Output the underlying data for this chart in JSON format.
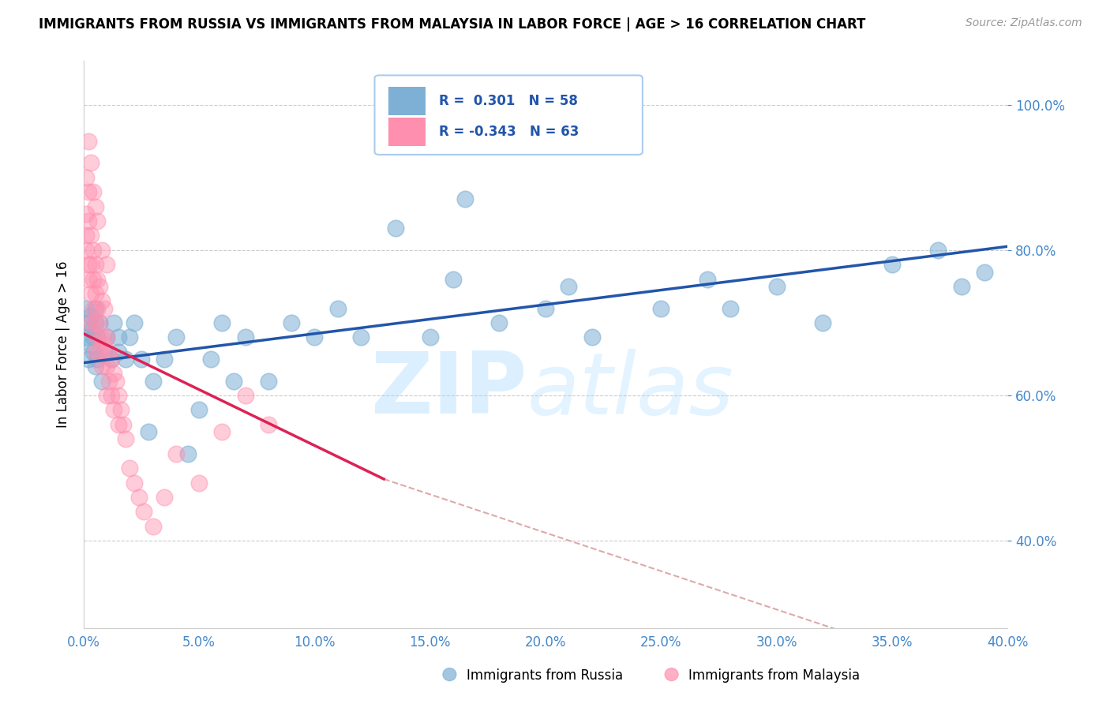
{
  "title": "IMMIGRANTS FROM RUSSIA VS IMMIGRANTS FROM MALAYSIA IN LABOR FORCE | AGE > 16 CORRELATION CHART",
  "source": "Source: ZipAtlas.com",
  "ylabel": "In Labor Force | Age > 16",
  "watermark_left": "ZIP",
  "watermark_right": "atlas",
  "legend_russia": "Immigrants from Russia",
  "legend_malaysia": "Immigrants from Malaysia",
  "R_russia": 0.301,
  "N_russia": 58,
  "R_malaysia": -0.343,
  "N_malaysia": 63,
  "color_russia": "#7EB0D5",
  "color_malaysia": "#FF8FAF",
  "line_color_russia": "#2255AA",
  "line_color_malaysia": "#DD2255",
  "dash_color": "#DDAAAA",
  "xlim": [
    0.0,
    0.4
  ],
  "ylim": [
    0.28,
    1.06
  ],
  "yticks": [
    0.4,
    0.6,
    0.8,
    1.0
  ],
  "xticks": [
    0.0,
    0.05,
    0.1,
    0.15,
    0.2,
    0.25,
    0.3,
    0.35,
    0.4
  ],
  "russia_x": [
    0.001,
    0.001,
    0.002,
    0.002,
    0.003,
    0.003,
    0.003,
    0.004,
    0.004,
    0.005,
    0.005,
    0.005,
    0.006,
    0.006,
    0.007,
    0.008,
    0.009,
    0.01,
    0.012,
    0.013,
    0.015,
    0.015,
    0.018,
    0.02,
    0.022,
    0.025,
    0.028,
    0.03,
    0.035,
    0.04,
    0.045,
    0.05,
    0.055,
    0.06,
    0.065,
    0.07,
    0.08,
    0.09,
    0.1,
    0.11,
    0.12,
    0.15,
    0.16,
    0.18,
    0.2,
    0.22,
    0.25,
    0.28,
    0.3,
    0.32,
    0.35,
    0.37,
    0.38,
    0.39,
    0.135,
    0.165,
    0.21,
    0.27
  ],
  "russia_y": [
    0.68,
    0.72,
    0.7,
    0.65,
    0.67,
    0.69,
    0.71,
    0.66,
    0.68,
    0.64,
    0.7,
    0.72,
    0.65,
    0.68,
    0.7,
    0.62,
    0.66,
    0.68,
    0.65,
    0.7,
    0.66,
    0.68,
    0.65,
    0.68,
    0.7,
    0.65,
    0.55,
    0.62,
    0.65,
    0.68,
    0.52,
    0.58,
    0.65,
    0.7,
    0.62,
    0.68,
    0.62,
    0.7,
    0.68,
    0.72,
    0.68,
    0.68,
    0.76,
    0.7,
    0.72,
    0.68,
    0.72,
    0.72,
    0.75,
    0.7,
    0.78,
    0.8,
    0.75,
    0.77,
    0.83,
    0.87,
    0.75,
    0.76
  ],
  "malaysia_x": [
    0.001,
    0.001,
    0.001,
    0.001,
    0.002,
    0.002,
    0.002,
    0.002,
    0.003,
    0.003,
    0.003,
    0.003,
    0.004,
    0.004,
    0.004,
    0.005,
    0.005,
    0.005,
    0.005,
    0.006,
    0.006,
    0.006,
    0.007,
    0.007,
    0.007,
    0.008,
    0.008,
    0.008,
    0.009,
    0.009,
    0.01,
    0.01,
    0.01,
    0.011,
    0.011,
    0.012,
    0.012,
    0.013,
    0.013,
    0.014,
    0.015,
    0.015,
    0.016,
    0.017,
    0.018,
    0.02,
    0.022,
    0.024,
    0.026,
    0.03,
    0.035,
    0.04,
    0.05,
    0.06,
    0.07,
    0.08,
    0.002,
    0.003,
    0.004,
    0.005,
    0.006,
    0.008,
    0.01
  ],
  "malaysia_y": [
    0.9,
    0.85,
    0.82,
    0.8,
    0.88,
    0.84,
    0.78,
    0.76,
    0.82,
    0.78,
    0.74,
    0.7,
    0.8,
    0.76,
    0.72,
    0.78,
    0.74,
    0.7,
    0.66,
    0.76,
    0.72,
    0.68,
    0.75,
    0.7,
    0.66,
    0.73,
    0.68,
    0.64,
    0.72,
    0.67,
    0.68,
    0.64,
    0.6,
    0.66,
    0.62,
    0.65,
    0.6,
    0.63,
    0.58,
    0.62,
    0.6,
    0.56,
    0.58,
    0.56,
    0.54,
    0.5,
    0.48,
    0.46,
    0.44,
    0.42,
    0.46,
    0.52,
    0.48,
    0.55,
    0.6,
    0.56,
    0.95,
    0.92,
    0.88,
    0.86,
    0.84,
    0.8,
    0.78
  ],
  "malaysia_line_xend": 0.13,
  "malaysia_dash_xend": 0.4,
  "russia_line_xstart": 0.0,
  "russia_line_xend": 0.4,
  "russia_line_ystart": 0.645,
  "russia_line_yend": 0.805,
  "malaysia_line_xstart": 0.0,
  "malaysia_line_ystart": 0.685,
  "malaysia_line_yend_solid": 0.485,
  "malaysia_dash_yend": 0.2
}
